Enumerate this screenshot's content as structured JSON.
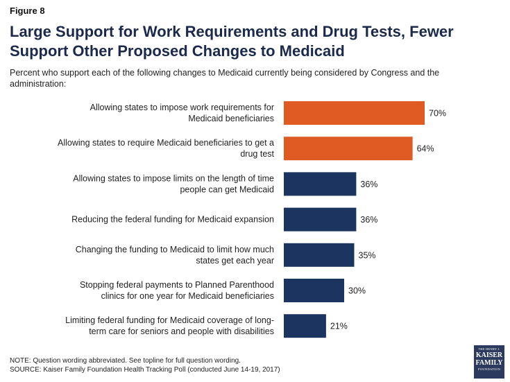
{
  "header": {
    "figure_label": "Figure 8",
    "title": "Large Support for Work Requirements and Drug Tests, Fewer Support Other Proposed Changes to Medicaid",
    "subtitle": "Percent who support each of the following changes to Medicaid currently being considered by Congress and the administration:"
  },
  "chart_data": {
    "type": "bar",
    "orientation": "horizontal",
    "categories": [
      [
        "Allowing states to impose work requirements for",
        "Medicaid beneficiaries"
      ],
      [
        "Allowing states to require Medicaid beneficiaries to get a",
        "drug test"
      ],
      [
        "Allowing states to impose limits on the length of time",
        "people can get Medicaid"
      ],
      [
        "Reducing the federal funding for Medicaid expansion"
      ],
      [
        "Changing the funding to Medicaid to limit how much",
        "states get each year"
      ],
      [
        "Stopping federal payments to Planned Parenthood",
        "clinics for one year for Medicaid beneficiaries"
      ],
      [
        "Limiting federal funding for Medicaid coverage of long-",
        "term care for seniors and people with disabilities"
      ]
    ],
    "values": [
      70,
      64,
      36,
      36,
      35,
      30,
      21
    ],
    "value_labels": [
      "70%",
      "64%",
      "36%",
      "36%",
      "35%",
      "30%",
      "21%"
    ],
    "bar_colors": [
      "#e05a24",
      "#e05a24",
      "#1c3560",
      "#1c3560",
      "#1c3560",
      "#1c3560",
      "#1c3560"
    ],
    "xlim": [
      0,
      100
    ],
    "grid": false,
    "legend": "none"
  },
  "footnotes": {
    "note": "NOTE: Question wording abbreviated. See topline for full question wording.",
    "source": "SOURCE: Kaiser Family Foundation Health Tracking Poll (conducted June 14-19, 2017)"
  },
  "logo": {
    "line1": "THE HENRY J.",
    "line2": "KAISER",
    "line3": "FAMILY",
    "line4": "FOUNDATION"
  }
}
